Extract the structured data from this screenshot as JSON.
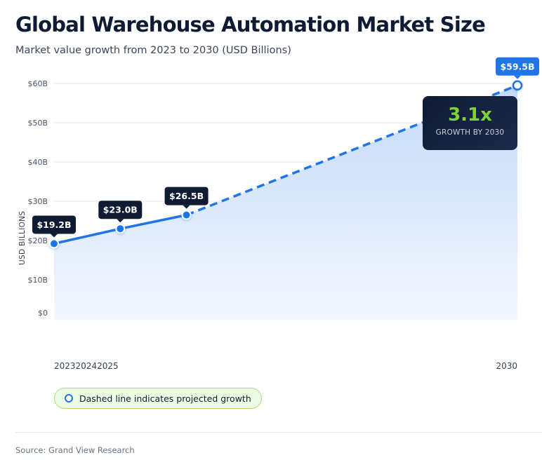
{
  "title": "Global Warehouse Automation Market Size",
  "subtitle": "Market value growth from 2023 to 2030 (USD Billions)",
  "chart_data": {
    "type": "line",
    "x": [
      2023,
      2024,
      2025,
      2030
    ],
    "x_tick_labels": [
      "2023",
      "2024",
      "2025"
    ],
    "x_last_label": "2030",
    "values": [
      19.2,
      23.0,
      26.5,
      59.5
    ],
    "data_labels": [
      "$19.2B",
      "$23.0B",
      "$26.5B",
      "$59.5B"
    ],
    "projected_from": 2025,
    "ylabel": "USD BILLIONS",
    "ylim": [
      0,
      60
    ],
    "y_ticks": [
      0,
      10,
      20,
      30,
      40,
      50,
      60
    ],
    "y_tick_labels": [
      "$0",
      "$10B",
      "$20B",
      "$30B",
      "$40B",
      "$50B",
      "$60B"
    ],
    "grid": true,
    "line_color": "#1f74e8",
    "label_color": "#0f1b33",
    "highlight_label_color": "#1f74e8"
  },
  "growth_callout": {
    "value": "3.1x",
    "label": "GROWTH BY 2030",
    "value_color": "#7ed13b"
  },
  "legend": {
    "text": "Dashed line indicates projected growth"
  },
  "source": "Source: Grand View Research"
}
